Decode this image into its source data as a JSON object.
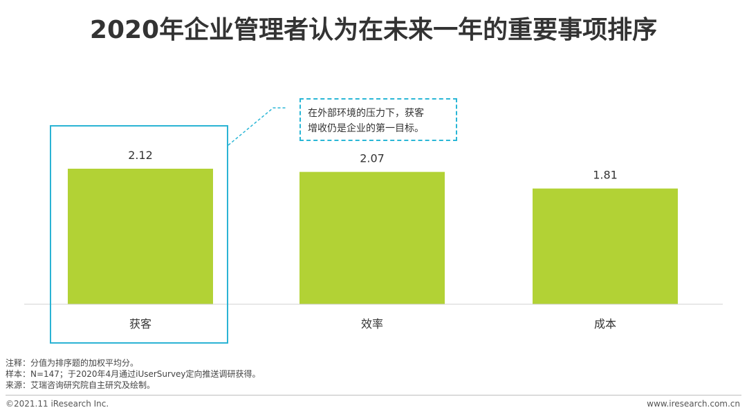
{
  "title": "2020年企业管理者认为在未来一年的重要事项排序",
  "callout": {
    "line1": "在外部环境的压力下，获客",
    "line2": "增收仍是企业的第一目标。"
  },
  "notes": {
    "line1": "注释：分值为排序题的加权平均分。",
    "line2": "样本：N=147；于2020年4月通过iUserSurvey定向推送调研获得。",
    "line3": "来源：艾瑞咨询研究院自主研究及绘制。"
  },
  "footer": {
    "left": "©2021.11 iResearch Inc.",
    "right": "www.iresearch.com.cn"
  },
  "colors": {
    "bar": "#b2d235",
    "highlight": "#2ab3d4",
    "baseline": "#d0d0d0"
  },
  "chart_data": {
    "type": "bar",
    "title": "2020年企业管理者认为在未来一年的重要事项排序",
    "xlabel": "",
    "ylabel": "",
    "categories": [
      "获客",
      "效率",
      "成本"
    ],
    "values": [
      2.12,
      2.07,
      1.81
    ],
    "data_labels": [
      "2.12",
      "2.07",
      "1.81"
    ],
    "ylim": [
      0,
      2.12
    ],
    "grid": false,
    "legend": "none"
  }
}
